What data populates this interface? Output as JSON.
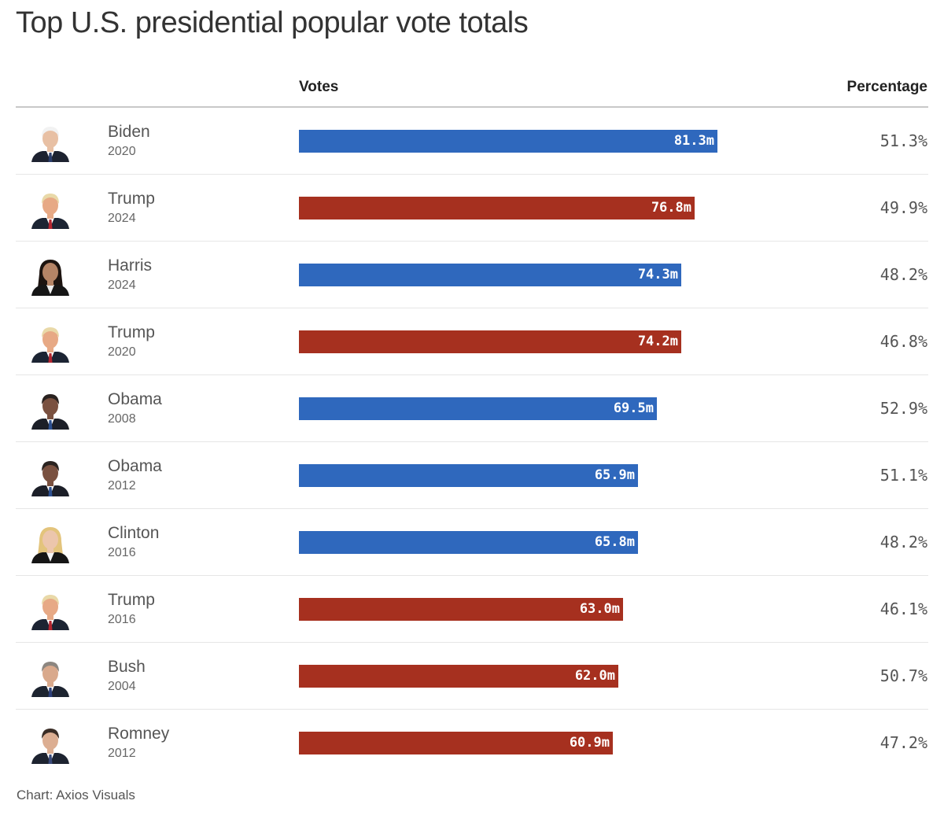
{
  "title": "Top U.S. presidential popular vote totals",
  "columns": {
    "votes": "Votes",
    "percentage": "Percentage"
  },
  "source": "Chart: Axios Visuals",
  "colors": {
    "democrat": "#2f68bd",
    "republican": "#a6301f"
  },
  "chart_data": {
    "type": "bar",
    "orientation": "horizontal",
    "title": "Top U.S. presidential popular vote totals",
    "value_unit": "millions of votes",
    "xlim": [
      0,
      81.3
    ],
    "rows": [
      {
        "name": "Biden",
        "year": "2020",
        "party": "democrat",
        "votes": 81.3,
        "votes_label": "81.3m",
        "percentage": "51.3%",
        "portrait": "biden-portrait"
      },
      {
        "name": "Trump",
        "year": "2024",
        "party": "republican",
        "votes": 76.8,
        "votes_label": "76.8m",
        "percentage": "49.9%",
        "portrait": "trump-portrait"
      },
      {
        "name": "Harris",
        "year": "2024",
        "party": "democrat",
        "votes": 74.3,
        "votes_label": "74.3m",
        "percentage": "48.2%",
        "portrait": "harris-portrait"
      },
      {
        "name": "Trump",
        "year": "2020",
        "party": "republican",
        "votes": 74.2,
        "votes_label": "74.2m",
        "percentage": "46.8%",
        "portrait": "trump-portrait"
      },
      {
        "name": "Obama",
        "year": "2008",
        "party": "democrat",
        "votes": 69.5,
        "votes_label": "69.5m",
        "percentage": "52.9%",
        "portrait": "obama-portrait"
      },
      {
        "name": "Obama",
        "year": "2012",
        "party": "democrat",
        "votes": 65.9,
        "votes_label": "65.9m",
        "percentage": "51.1%",
        "portrait": "obama-portrait"
      },
      {
        "name": "Clinton",
        "year": "2016",
        "party": "democrat",
        "votes": 65.8,
        "votes_label": "65.8m",
        "percentage": "48.2%",
        "portrait": "clinton-portrait"
      },
      {
        "name": "Trump",
        "year": "2016",
        "party": "republican",
        "votes": 63.0,
        "votes_label": "63.0m",
        "percentage": "46.1%",
        "portrait": "trump-portrait"
      },
      {
        "name": "Bush",
        "year": "2004",
        "party": "republican",
        "votes": 62.0,
        "votes_label": "62.0m",
        "percentage": "50.7%",
        "portrait": "bush-portrait"
      },
      {
        "name": "Romney",
        "year": "2012",
        "party": "republican",
        "votes": 60.9,
        "votes_label": "60.9m",
        "percentage": "47.2%",
        "portrait": "romney-portrait"
      }
    ]
  }
}
